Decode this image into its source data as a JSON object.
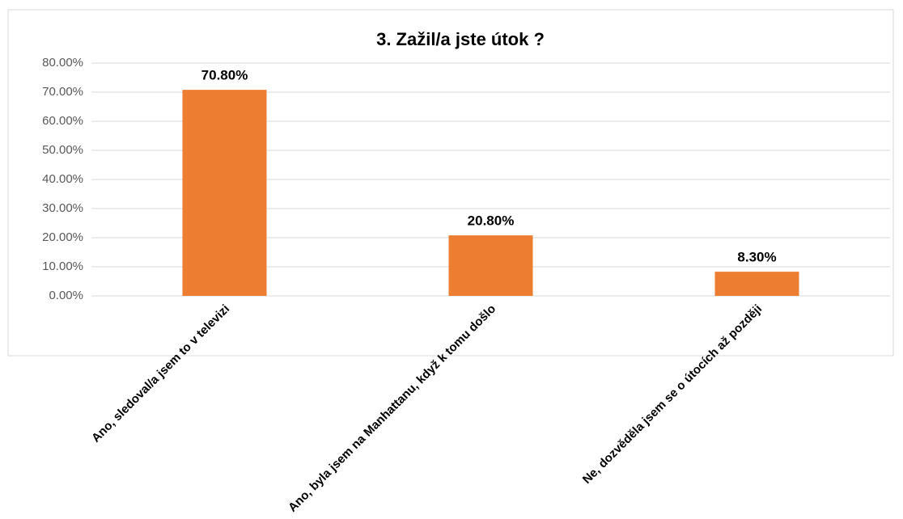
{
  "chart_data": {
    "type": "bar",
    "title": "3. Zažil/a jste útok ?",
    "categories": [
      "Ano, sledoval/a jsem to v televizi",
      "Ano, byla jsem na Manhattanu, když k tomu došlo",
      "Ne, dozvěděla jsem se o útocích až později"
    ],
    "values": [
      70.8,
      20.8,
      8.3
    ],
    "value_labels": [
      "70.80%",
      "20.80%",
      "8.30%"
    ],
    "color": "#ed7d31",
    "ylim": [
      0,
      80
    ],
    "yticks": [
      {
        "value": 0,
        "label": "0.00%"
      },
      {
        "value": 10,
        "label": "10.00%"
      },
      {
        "value": 20,
        "label": "20.00%"
      },
      {
        "value": 30,
        "label": "30.00%"
      },
      {
        "value": 40,
        "label": "40.00%"
      },
      {
        "value": 50,
        "label": "50.00%"
      },
      {
        "value": 60,
        "label": "60.00%"
      },
      {
        "value": 70,
        "label": "70.00%"
      },
      {
        "value": 80,
        "label": "80.00%"
      }
    ],
    "grid": true
  }
}
